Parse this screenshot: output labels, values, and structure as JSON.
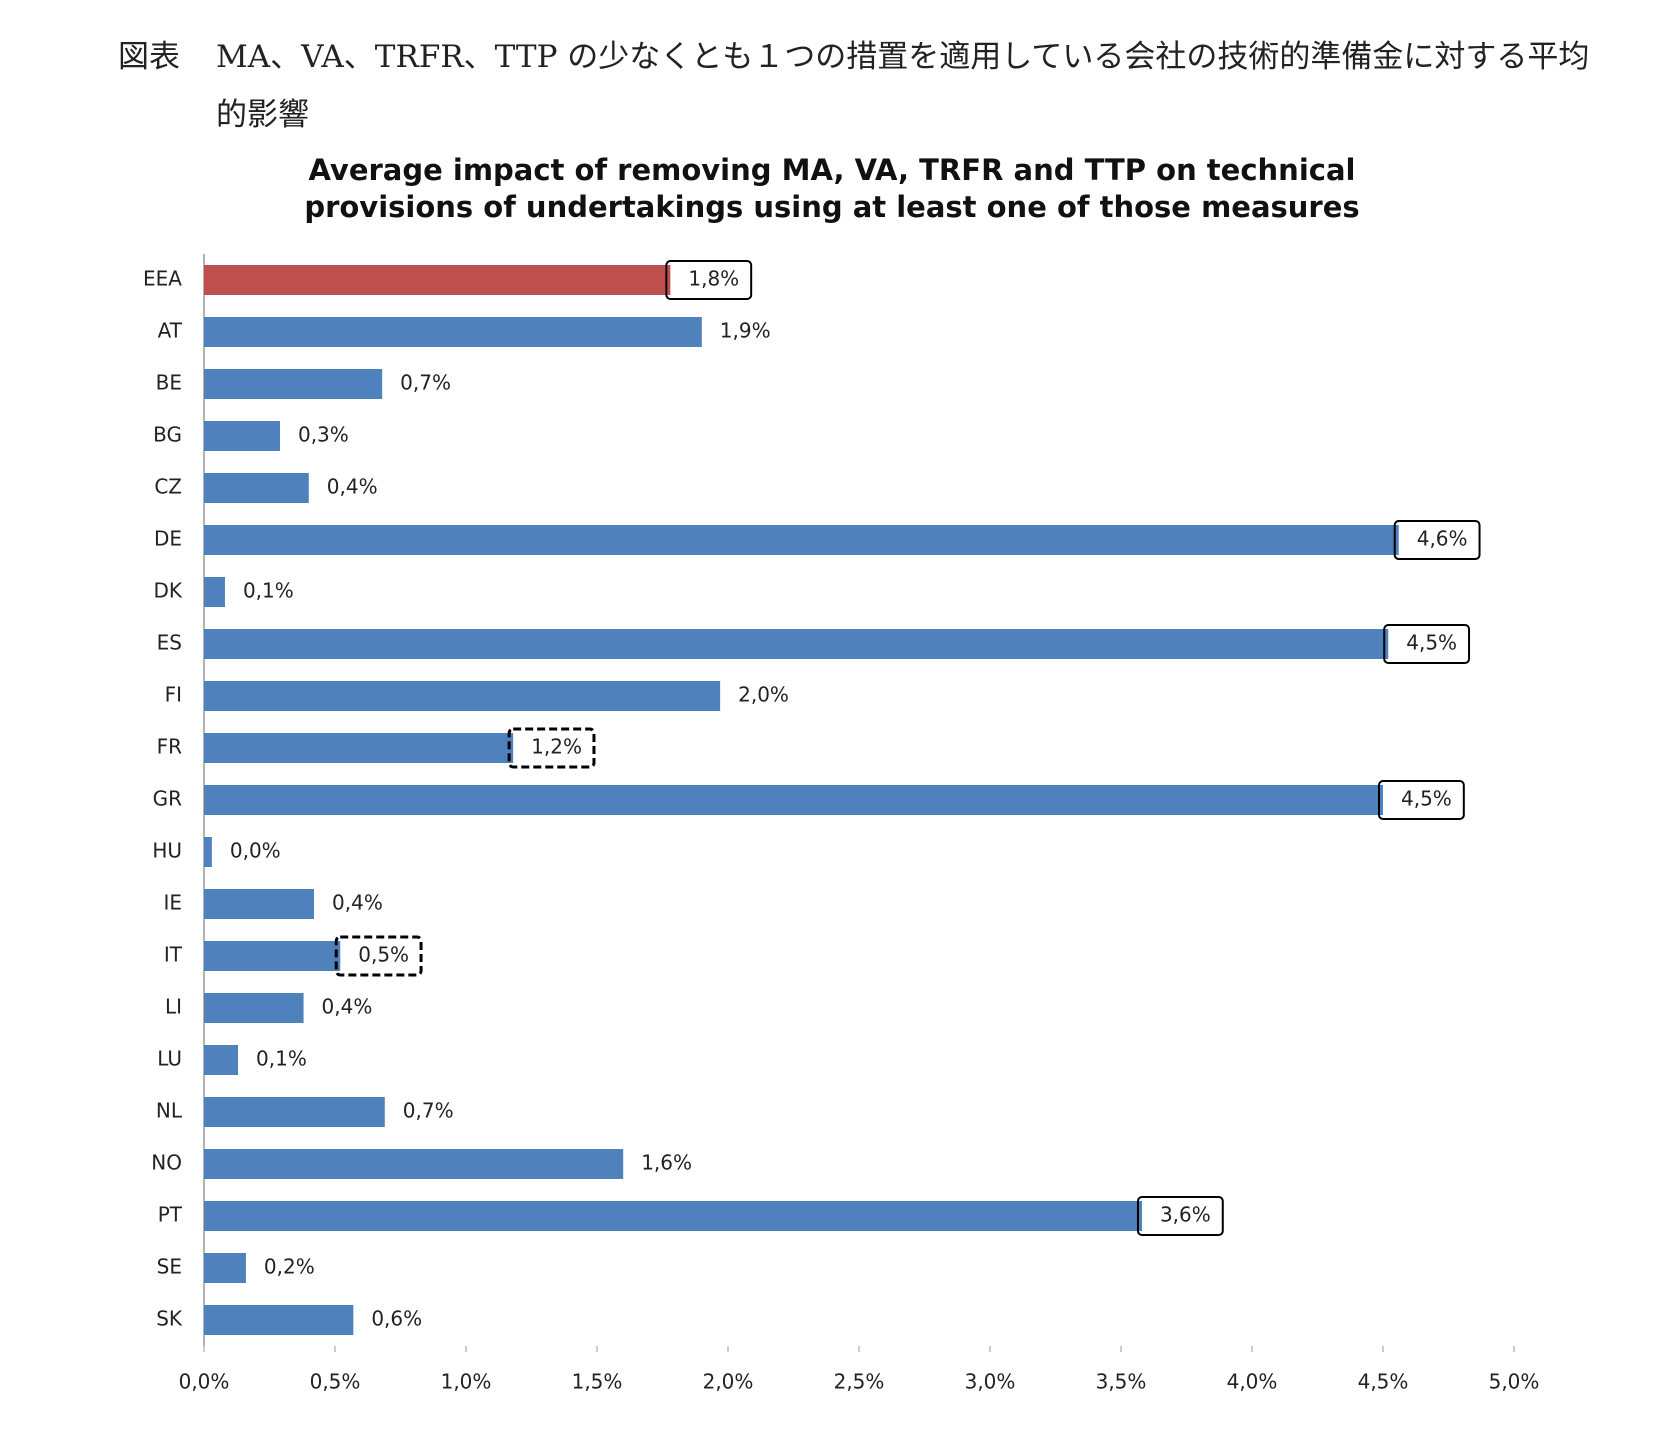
{
  "caption_label": "図表",
  "caption": "MA、VA、TRFR、TTP の少なくとも１つの措置を適用している会社の技術的準備金に対する平均的影響",
  "chart_data": {
    "type": "bar",
    "orientation": "horizontal",
    "title": "Average impact of removing MA, VA, TRFR and TTP on technical provisions of undertakings using at least one of those measures",
    "categories": [
      "EEA",
      "AT",
      "BE",
      "BG",
      "CZ",
      "DE",
      "DK",
      "ES",
      "FI",
      "FR",
      "GR",
      "HU",
      "IE",
      "IT",
      "LI",
      "LU",
      "NL",
      "NO",
      "PT",
      "SE",
      "SK"
    ],
    "values": [
      1.78,
      1.9,
      0.68,
      0.29,
      0.4,
      4.56,
      0.08,
      4.52,
      1.97,
      1.18,
      4.5,
      0.03,
      0.42,
      0.52,
      0.38,
      0.13,
      0.69,
      1.6,
      3.58,
      0.16,
      0.57
    ],
    "value_labels": [
      "1,8%",
      "1,9%",
      "0,7%",
      "0,3%",
      "0,4%",
      "4,6%",
      "0,1%",
      "4,5%",
      "2,0%",
      "1,2%",
      "4,5%",
      "0,0%",
      "0,4%",
      "0,5%",
      "0,4%",
      "0,1%",
      "0,7%",
      "1,6%",
      "3,6%",
      "0,2%",
      "0,6%"
    ],
    "colors": [
      "#c0504d",
      "#4f81bd",
      "#4f81bd",
      "#4f81bd",
      "#4f81bd",
      "#4f81bd",
      "#4f81bd",
      "#4f81bd",
      "#4f81bd",
      "#4f81bd",
      "#4f81bd",
      "#4f81bd",
      "#4f81bd",
      "#4f81bd",
      "#4f81bd",
      "#4f81bd",
      "#4f81bd",
      "#4f81bd",
      "#4f81bd",
      "#4f81bd",
      "#4f81bd"
    ],
    "label_boxes": [
      "solid",
      null,
      null,
      null,
      null,
      "solid",
      null,
      "solid",
      null,
      "dashed",
      "solid",
      null,
      null,
      "dashed",
      null,
      null,
      null,
      null,
      "solid",
      null,
      null
    ],
    "xlim": [
      0,
      5
    ],
    "xticks": [
      {
        "value": 0,
        "label": "0,0%"
      },
      {
        "value": 0.5,
        "label": "0,5%"
      },
      {
        "value": 1,
        "label": "1,0%"
      },
      {
        "value": 1.5,
        "label": "1,5%"
      },
      {
        "value": 2,
        "label": "2,0%"
      },
      {
        "value": 2.5,
        "label": "2,5%"
      },
      {
        "value": 3,
        "label": "3,0%"
      },
      {
        "value": 3.5,
        "label": "3,5%"
      },
      {
        "value": 4,
        "label": "4,0%"
      },
      {
        "value": 4.5,
        "label": "4,5%"
      },
      {
        "value": 5,
        "label": "5,0%"
      }
    ],
    "grid": false
  }
}
